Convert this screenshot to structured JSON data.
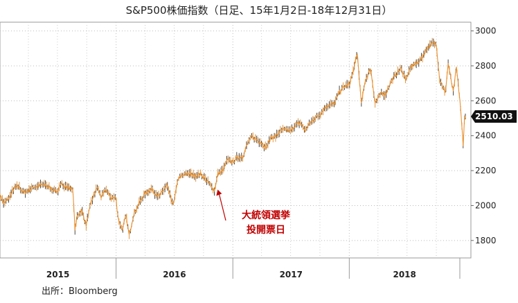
{
  "chart_data": {
    "type": "line",
    "title": "S&P500株価指数（日足、15年1月2日-18年12月31日）",
    "source": "出所：Bloomberg",
    "ylim": [
      1700,
      3050
    ],
    "yticks": [
      1800,
      2000,
      2200,
      2400,
      2600,
      2800,
      3000
    ],
    "xlim": [
      "2015-01-02",
      "2018-12-31"
    ],
    "years": [
      "2015",
      "2016",
      "2017",
      "2018"
    ],
    "grid": true,
    "last_value_label": "2510.03",
    "annotation": {
      "line1": "大統領選挙",
      "line2": "投開票日",
      "date": "2016-11-08",
      "value": 2139
    },
    "series": [
      {
        "x": [
          "2015-01-02",
          "2015-01-15",
          "2015-02-02",
          "2015-02-15",
          "2015-03-02",
          "2015-03-15",
          "2015-04-01",
          "2015-04-15",
          "2015-05-01",
          "2015-05-15",
          "2015-06-01",
          "2015-06-15",
          "2015-07-01",
          "2015-07-15",
          "2015-08-03",
          "2015-08-18",
          "2015-08-25",
          "2015-09-01",
          "2015-09-15",
          "2015-09-29",
          "2015-10-15",
          "2015-11-03",
          "2015-11-15",
          "2015-12-01",
          "2015-12-15",
          "2015-12-31",
          "2016-01-08",
          "2016-01-20",
          "2016-02-01",
          "2016-02-11",
          "2016-02-25",
          "2016-03-15",
          "2016-04-01",
          "2016-04-20",
          "2016-05-15",
          "2016-06-08",
          "2016-06-27",
          "2016-07-15",
          "2016-08-15",
          "2016-09-01",
          "2016-09-22",
          "2016-10-15",
          "2016-11-04",
          "2016-11-15",
          "2016-12-01",
          "2016-12-15",
          "2017-01-02",
          "2017-01-15",
          "2017-02-01",
          "2017-02-15",
          "2017-03-01",
          "2017-03-15",
          "2017-04-01",
          "2017-04-15",
          "2017-05-01",
          "2017-05-15",
          "2017-06-01",
          "2017-06-15",
          "2017-07-01",
          "2017-07-15",
          "2017-08-01",
          "2017-08-15",
          "2017-09-01",
          "2017-09-15",
          "2017-10-01",
          "2017-10-15",
          "2017-11-01",
          "2017-11-15",
          "2017-12-01",
          "2017-12-15",
          "2018-01-02",
          "2018-01-15",
          "2018-01-26",
          "2018-02-08",
          "2018-02-20",
          "2018-03-09",
          "2018-03-23",
          "2018-04-10",
          "2018-04-25",
          "2018-05-15",
          "2018-06-12",
          "2018-06-28",
          "2018-07-15",
          "2018-08-01",
          "2018-08-15",
          "2018-09-01",
          "2018-09-20",
          "2018-10-01",
          "2018-10-11",
          "2018-10-29",
          "2018-11-07",
          "2018-11-23",
          "2018-12-03",
          "2018-12-14",
          "2018-12-24",
          "2018-12-28",
          "2018-12-31"
        ],
        "y": [
          2058,
          2010,
          2050,
          2100,
          2110,
          2075,
          2085,
          2105,
          2110,
          2120,
          2110,
          2095,
          2080,
          2125,
          2100,
          2100,
          1868,
          1940,
          1975,
          1890,
          2020,
          2105,
          2050,
          2090,
          2045,
          2043,
          1925,
          1860,
          1940,
          1829,
          1950,
          2020,
          2070,
          2095,
          2050,
          2118,
          2000,
          2160,
          2185,
          2170,
          2180,
          2135,
          2086,
          2180,
          2200,
          2260,
          2250,
          2275,
          2280,
          2350,
          2395,
          2380,
          2360,
          2330,
          2390,
          2395,
          2430,
          2435,
          2425,
          2460,
          2475,
          2430,
          2475,
          2500,
          2520,
          2560,
          2580,
          2580,
          2650,
          2680,
          2695,
          2780,
          2872,
          2581,
          2716,
          2786,
          2588,
          2640,
          2640,
          2720,
          2785,
          2720,
          2800,
          2815,
          2840,
          2900,
          2930,
          2925,
          2728,
          2641,
          2813,
          2650,
          2790,
          2600,
          2351,
          2485,
          2510
        ]
      }
    ]
  }
}
